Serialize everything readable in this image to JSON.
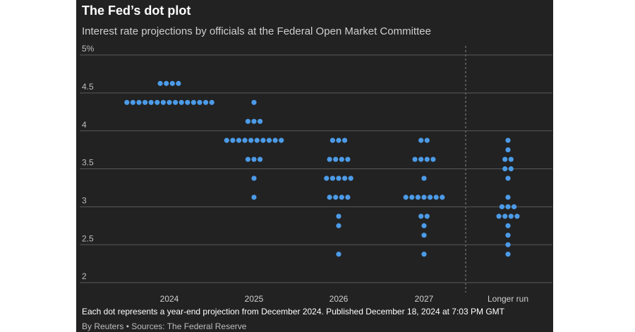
{
  "chart_data": {
    "type": "dot",
    "title": "The Fed’s dot plot",
    "subtitle": "Interest rate projections by officials at the Federal Open Market Committee",
    "footnote": "Each dot represents a year-end projection from December 2024. Published December 18, 2024 at 7:03 PM GMT",
    "source": "By Reuters • Sources: The Federal Reserve",
    "categories": [
      "2024",
      "2025",
      "2026",
      "2027",
      "Longer run"
    ],
    "color": "#4c9be8",
    "values": [
      [
        4.625,
        4.625,
        4.625,
        4.625,
        4.375,
        4.375,
        4.375,
        4.375,
        4.375,
        4.375,
        4.375,
        4.375,
        4.375,
        4.375,
        4.375,
        4.375,
        4.375,
        4.375,
        4.375
      ],
      [
        4.375,
        4.125,
        4.125,
        4.125,
        3.875,
        3.875,
        3.875,
        3.875,
        3.875,
        3.875,
        3.875,
        3.875,
        3.875,
        3.875,
        3.625,
        3.625,
        3.625,
        3.375,
        3.125
      ],
      [
        3.875,
        3.875,
        3.875,
        3.625,
        3.625,
        3.625,
        3.625,
        3.375,
        3.375,
        3.375,
        3.375,
        3.375,
        3.125,
        3.125,
        3.125,
        3.125,
        2.875,
        2.75,
        2.375
      ],
      [
        3.875,
        3.875,
        3.625,
        3.625,
        3.625,
        3.625,
        3.375,
        3.125,
        3.125,
        3.125,
        3.125,
        3.125,
        3.125,
        3.125,
        2.875,
        2.875,
        2.75,
        2.625,
        2.375
      ],
      [
        3.875,
        3.75,
        3.625,
        3.625,
        3.5,
        3.5,
        3.375,
        3.125,
        3.0,
        3.0,
        3.0,
        2.875,
        2.875,
        2.875,
        2.875,
        2.75,
        2.625,
        2.5,
        2.375
      ]
    ],
    "ylim": [
      2,
      5
    ],
    "yticks": [
      2,
      2.5,
      3,
      3.5,
      4,
      4.5,
      {
        "value": 5,
        "label": "5%"
      }
    ],
    "grid": true
  }
}
